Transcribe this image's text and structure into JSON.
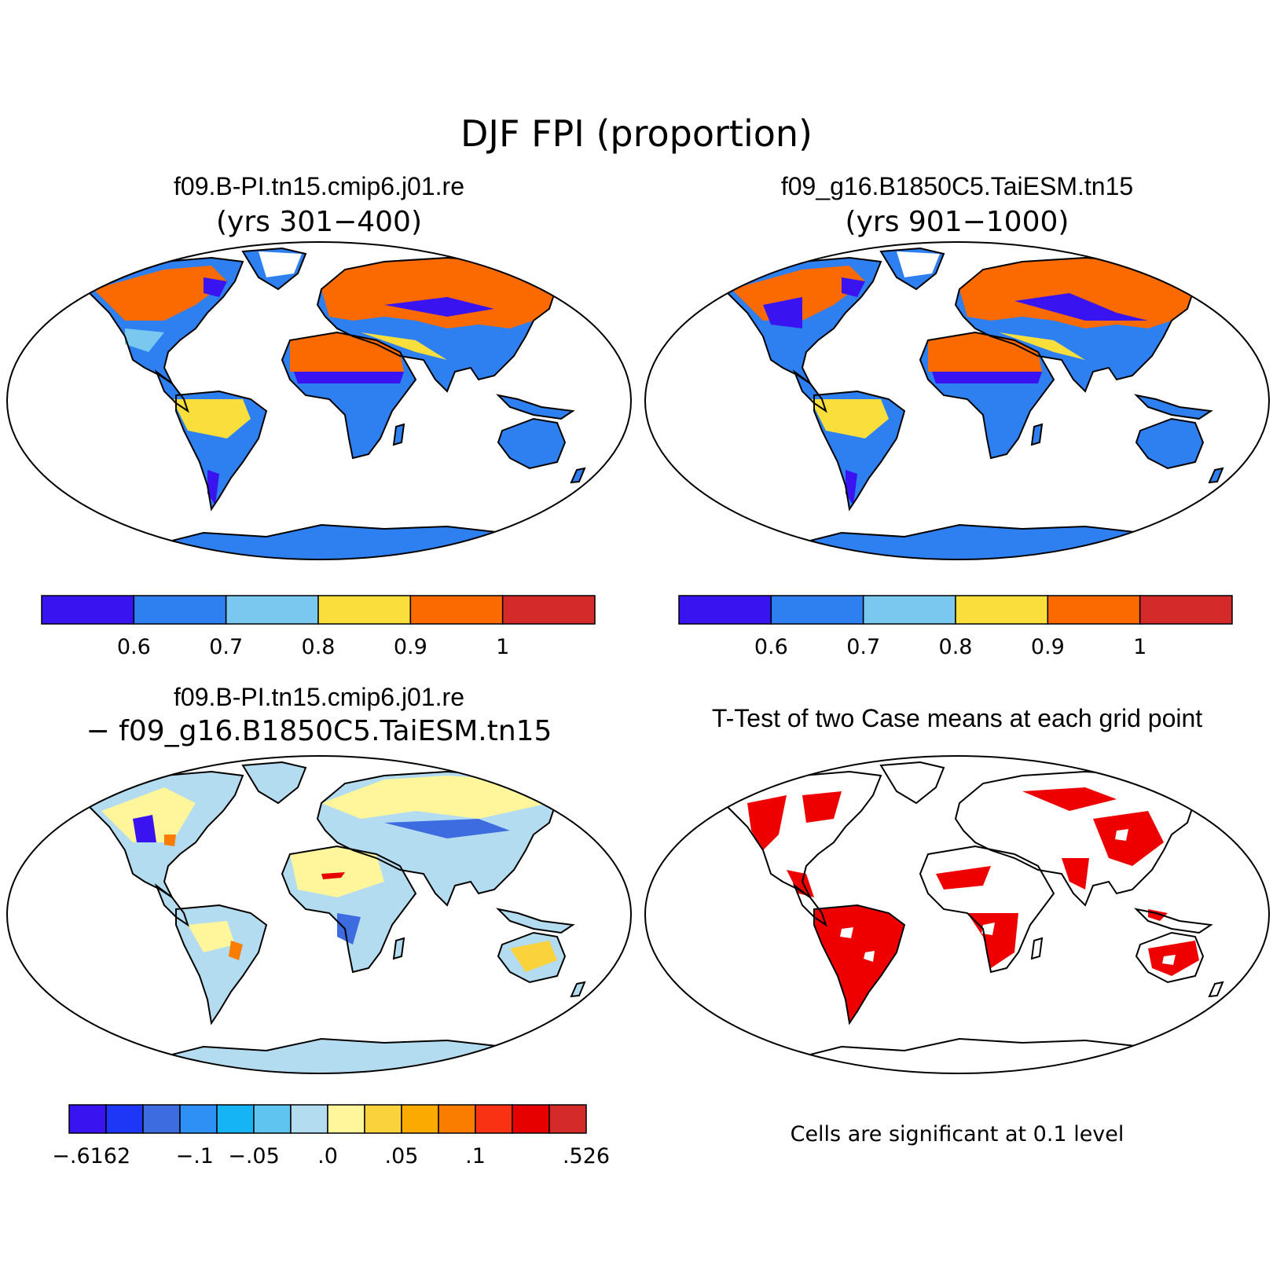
{
  "figure": {
    "title": "DJF FPI (proportion)"
  },
  "panels": {
    "top_left": {
      "title": "f09.B-PI.tn15.cmip6.j01.re",
      "subtitle": "(yrs 301−400)"
    },
    "top_right": {
      "title": "f09_g16.B1850C5.TaiESM.tn15",
      "subtitle": "(yrs 901−1000)"
    },
    "bottom_left": {
      "title": "f09.B-PI.tn15.cmip6.j01.re",
      "subtitle": "− f09_g16.B1850C5.TaiESM.tn15"
    },
    "bottom_right": {
      "title": "T-Test of two Case means at each grid point",
      "note": "Cells are significant at 0.1 level"
    }
  },
  "colorbars": {
    "fpi": {
      "colors": [
        "#3a14f0",
        "#2e7ff0",
        "#7ac8f0",
        "#fadf3c",
        "#fa6a00",
        "#d42a2a"
      ],
      "tick_labels": [
        "0.6",
        "0.7",
        "0.8",
        "0.9",
        "1"
      ]
    },
    "diff": {
      "colors": [
        "#3a14f0",
        "#1e36f5",
        "#3d6be0",
        "#2e8ff5",
        "#14b4f5",
        "#5fc4f0",
        "#b4dcf0",
        "#fff59a",
        "#fad23c",
        "#faaa00",
        "#fa7d00",
        "#fa3214",
        "#e60000",
        "#d42a2a"
      ],
      "tick_labels": [
        "−.6162",
        "−.1",
        "−.05",
        ".0",
        ".05",
        ".1",
        ".526"
      ]
    }
  },
  "chart_data": [
    {
      "type": "heatmap",
      "title": "f09.B-PI.tn15.cmip6.j01.re",
      "subtitle": "(yrs 301−400)",
      "variable": "DJF FPI (proportion)",
      "levels": [
        0.6,
        0.7,
        0.8,
        0.9,
        1
      ],
      "colors": [
        "#3a14f0",
        "#2e7ff0",
        "#7ac8f0",
        "#fadf3c",
        "#fa6a00",
        "#d42a2a"
      ]
    },
    {
      "type": "heatmap",
      "title": "f09_g16.B1850C5.TaiESM.tn15",
      "subtitle": "(yrs 901−1000)",
      "variable": "DJF FPI (proportion)",
      "levels": [
        0.6,
        0.7,
        0.8,
        0.9,
        1
      ],
      "colors": [
        "#3a14f0",
        "#2e7ff0",
        "#7ac8f0",
        "#fadf3c",
        "#fa6a00",
        "#d42a2a"
      ]
    },
    {
      "type": "heatmap",
      "title": "f09.B-PI.tn15.cmip6.j01.re − f09_g16.B1850C5.TaiESM.tn15",
      "levels_labels": [
        "−.6162",
        "−.1",
        "−.05",
        ".0",
        ".05",
        ".1",
        ".526"
      ],
      "colors": [
        "#3a14f0",
        "#1e36f5",
        "#3d6be0",
        "#2e8ff5",
        "#14b4f5",
        "#5fc4f0",
        "#b4dcf0",
        "#fff59a",
        "#fad23c",
        "#faaa00",
        "#fa7d00",
        "#fa3214",
        "#e60000",
        "#d42a2a"
      ]
    },
    {
      "type": "heatmap",
      "title": "T-Test of two Case means at each grid point",
      "significance_level": 0.1,
      "colors": [
        "#ffffff",
        "#ee0000"
      ]
    }
  ]
}
